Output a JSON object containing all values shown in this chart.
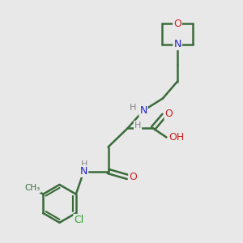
{
  "bg_color": "#e8e8e8",
  "bond_color": "#3a6b3a",
  "bond_width": 1.8,
  "N_color": "#2222cc",
  "O_color": "#cc2222",
  "Cl_color": "#2ca02c",
  "H_color": "#888888",
  "fig_size": [
    3.0,
    3.0
  ],
  "dpi": 100,
  "xlim": [
    0,
    10
  ],
  "ylim": [
    0,
    10
  ]
}
